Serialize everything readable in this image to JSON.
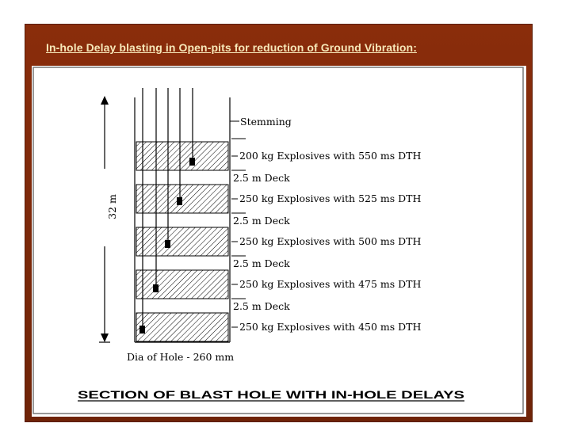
{
  "title": "In-hole Delay blasting in Open-pits for reduction of Ground Vibration:",
  "diagram": {
    "stemming_label": "Stemming",
    "height_label": "32 m",
    "diameter_label": "Dia of Hole - 260 mm",
    "caption": "SECTION OF BLAST HOLE WITH IN-HOLE DELAYS",
    "charges": [
      {
        "label": "200 kg Explosives with 550 ms DTH"
      },
      {
        "label": "250 kg Explosives with 525 ms DTH"
      },
      {
        "label": "250 kg Explosives with 500 ms DTH"
      },
      {
        "label": "250 kg Explosives with 475 ms DTH"
      },
      {
        "label": "250 kg Explosives with 450 ms DTH"
      }
    ],
    "decks": [
      {
        "label": "2.5 m Deck"
      },
      {
        "label": "2.5 m Deck"
      },
      {
        "label": "2.5 m Deck"
      },
      {
        "label": "2.5 m Deck"
      }
    ]
  }
}
